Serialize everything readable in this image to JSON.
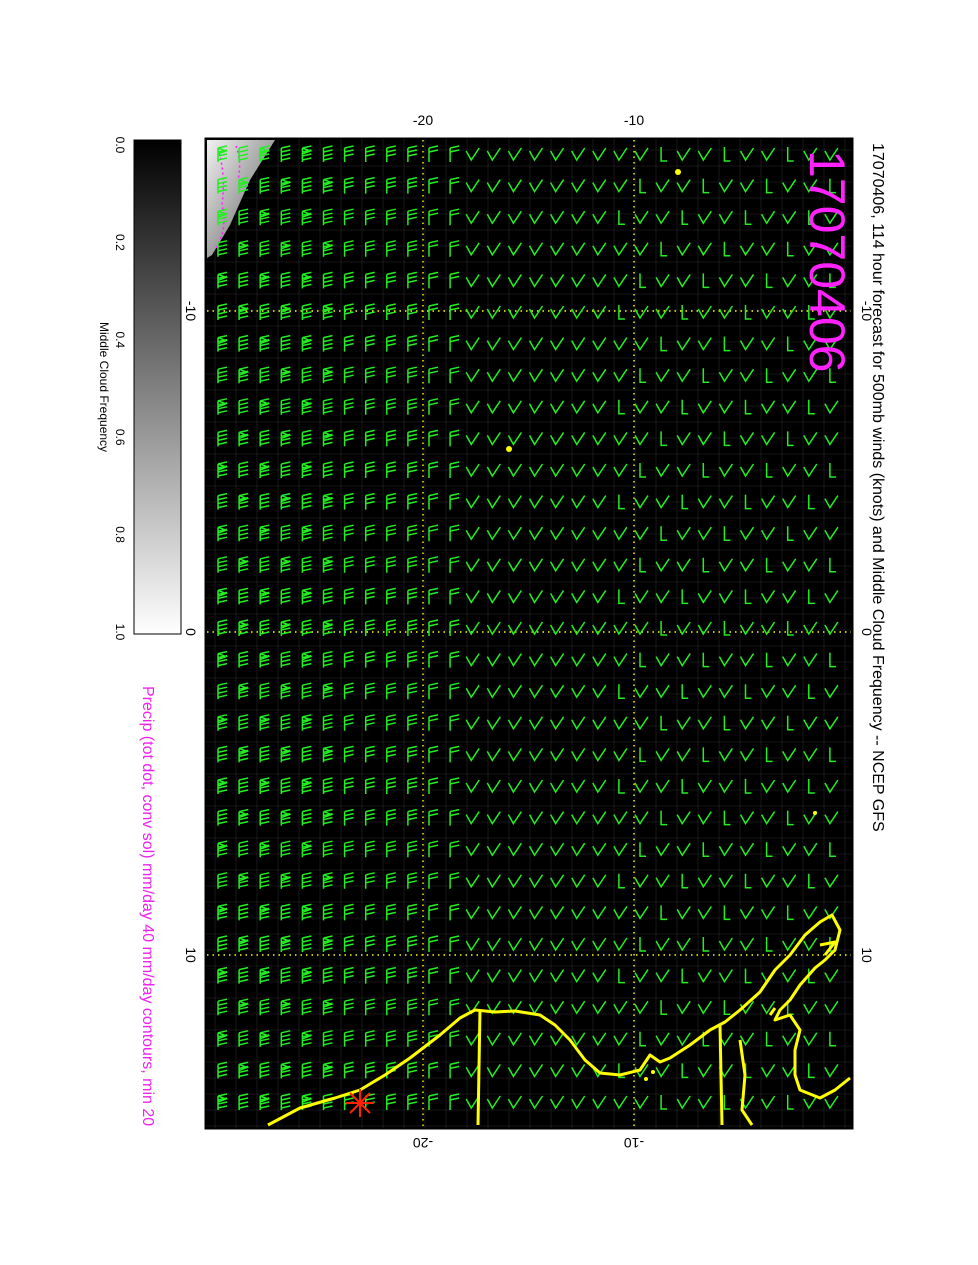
{
  "title": "17070406, 114 hour forecast for 500mb winds (knots) and Middle Cloud Frequency -- NCEP GFS",
  "stamp": "17070406",
  "footer": "Precip (tot dot, conv sol) mm/day 40 mm/day contours, min 20",
  "colorbar": {
    "label": "Middle Cloud Frequency",
    "ticks": [
      "0.0",
      "0.2",
      "0.4",
      "0.6",
      "0.8",
      "1.0"
    ]
  },
  "axes": {
    "lon_ticks": [
      "-20",
      "-10"
    ],
    "lat_ticks": [
      "-10",
      "0",
      "10"
    ]
  },
  "colors": {
    "barb": "#22ee22",
    "coast": "#ffff00",
    "stamp": "#ff22ff",
    "footer": "#ee22ee",
    "grid": "#ffff00",
    "storm": "#ff2200"
  }
}
